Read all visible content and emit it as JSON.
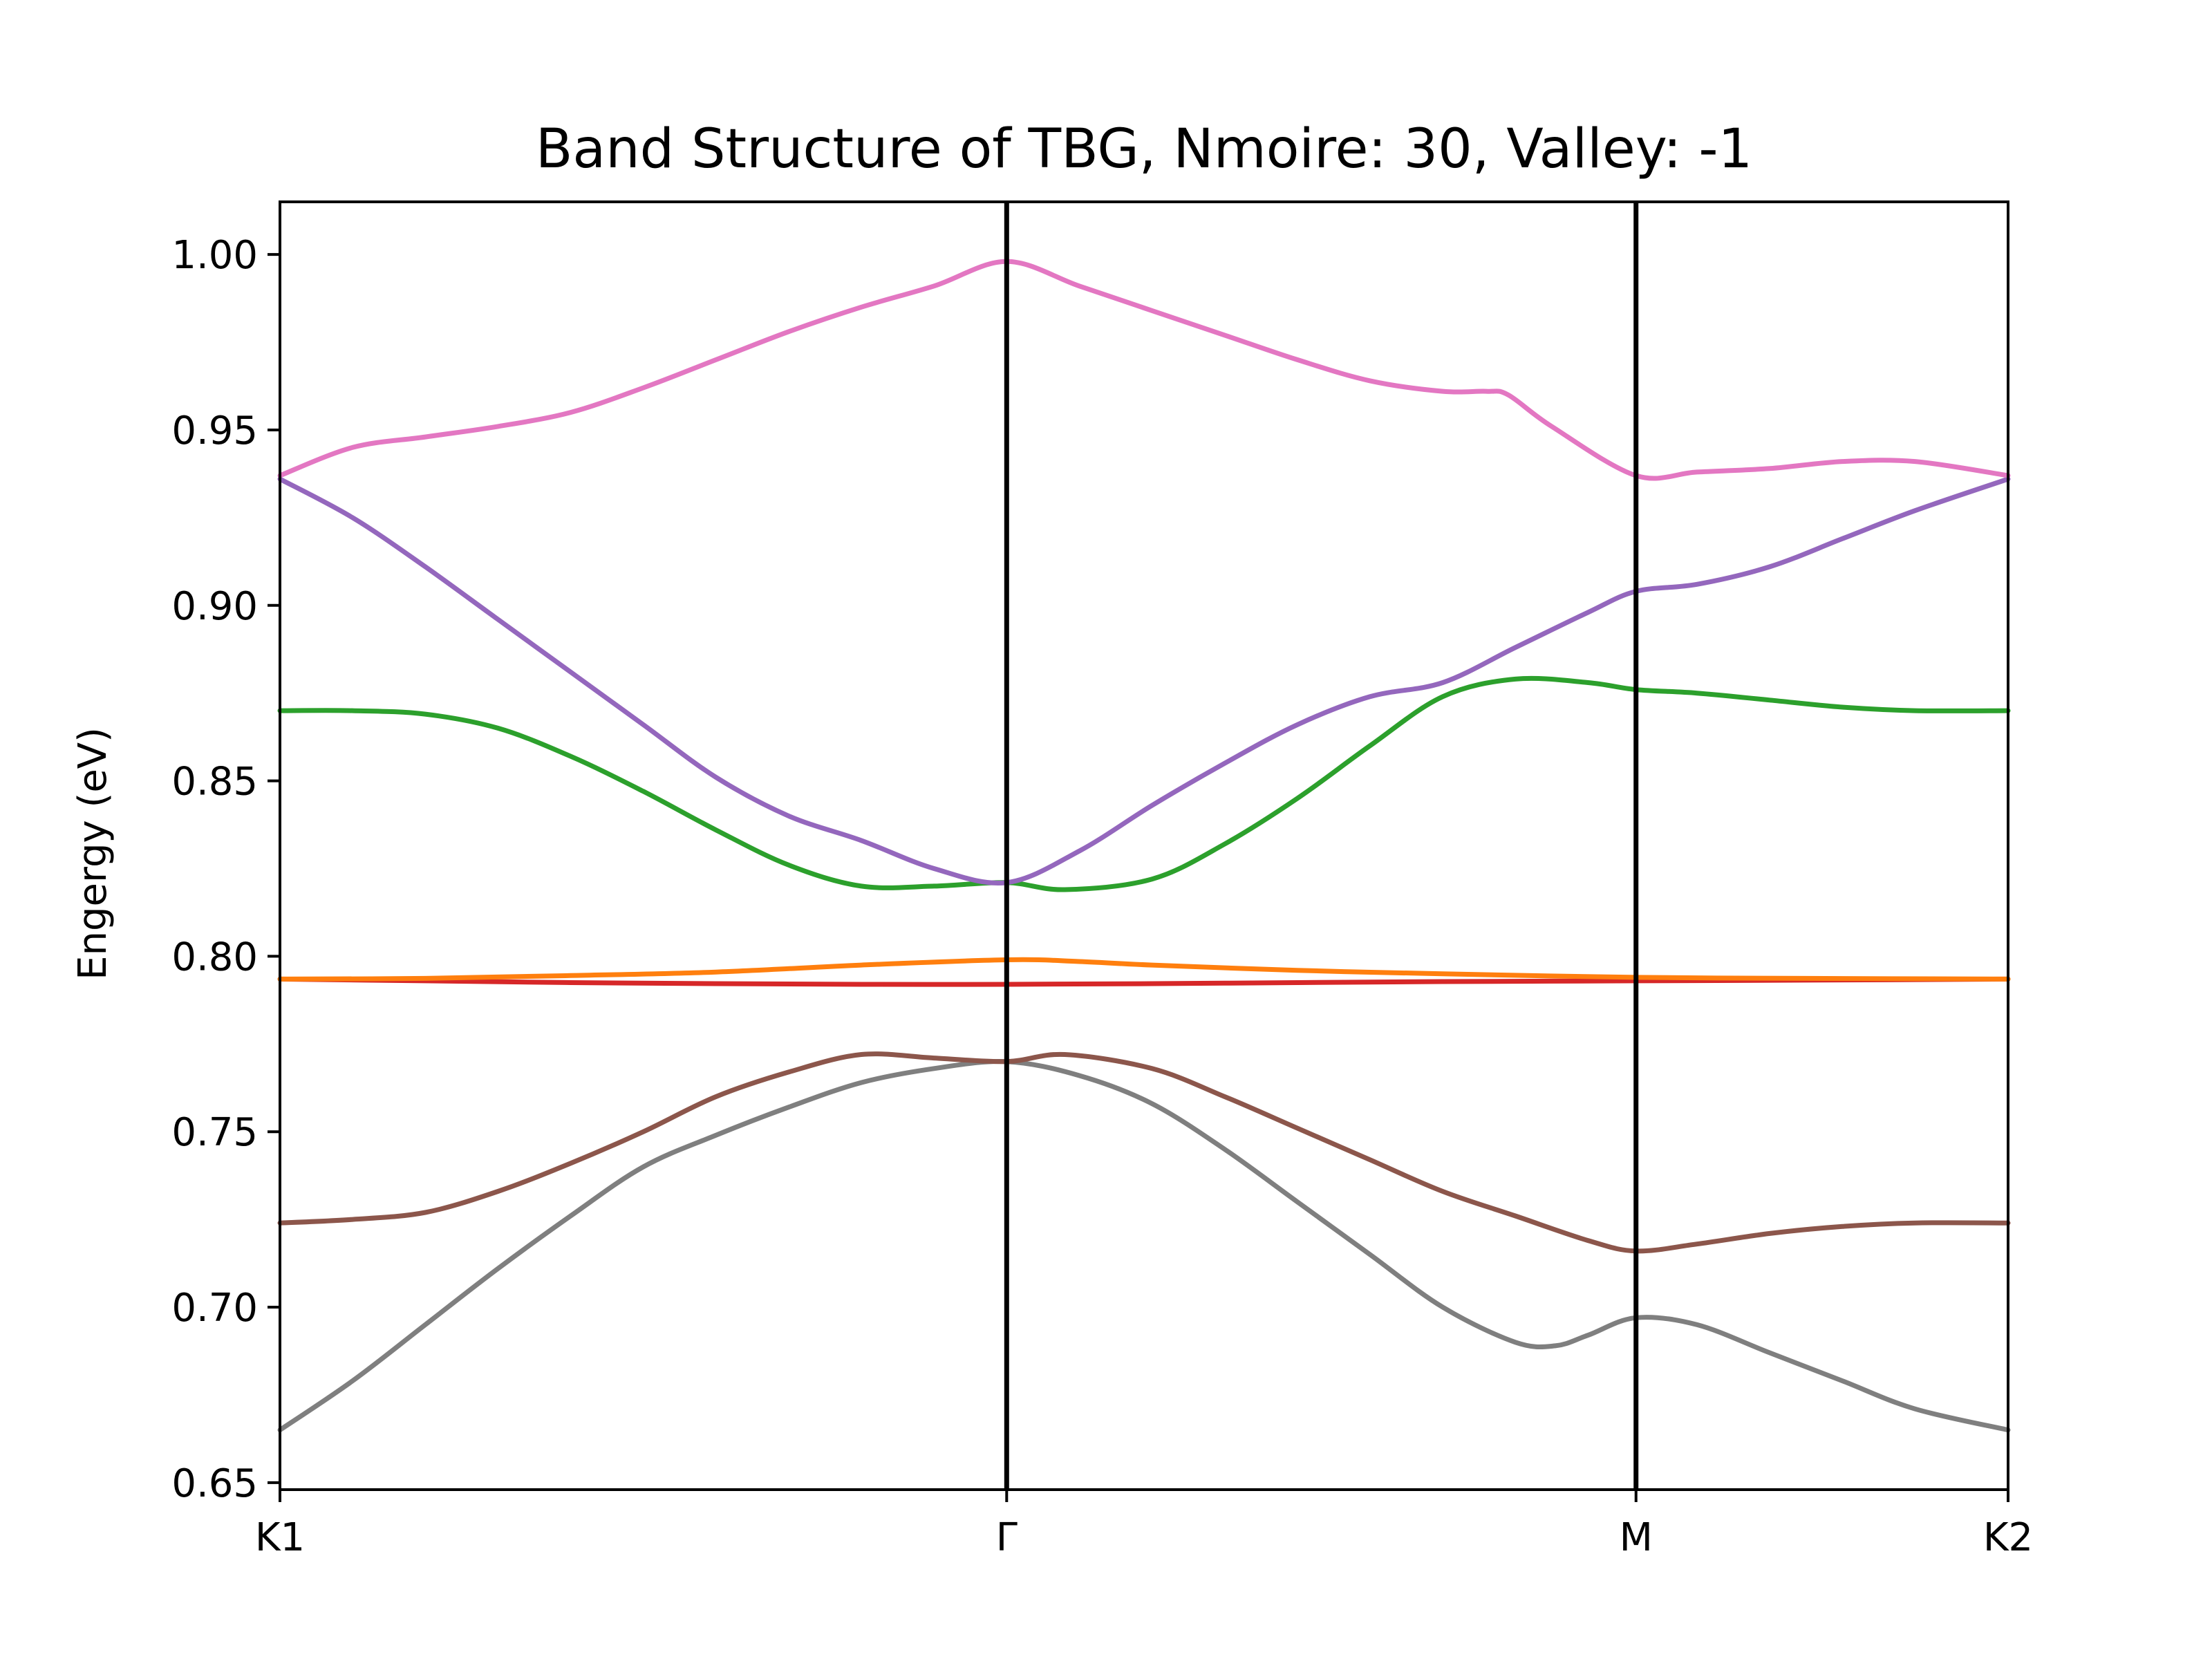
{
  "chart_data": {
    "type": "line",
    "title": "Band Structure of TBG, Nmoire: 30, Valley: -1",
    "xlabel": "",
    "ylabel": "Engergy (eV)",
    "xlim": [
      0,
      2.378
    ],
    "ylim": [
      0.648,
      1.015
    ],
    "yticks": [
      0.65,
      0.7,
      0.75,
      0.8,
      0.85,
      0.9,
      0.95,
      1.0
    ],
    "ytick_labels": [
      "0.65",
      "0.70",
      "0.75",
      "0.80",
      "0.85",
      "0.90",
      "0.95",
      "1.00"
    ],
    "xticks": [
      0,
      1.0,
      1.866,
      2.378
    ],
    "xtick_labels": [
      "K1",
      "Γ",
      "M",
      "K2"
    ],
    "vlines": [
      1.0,
      1.866
    ],
    "grid": false,
    "legend": "none",
    "series": [
      {
        "color": "#7f7f7f",
        "points": [
          [
            0,
            0.665
          ],
          [
            0.1,
            0.679
          ],
          [
            0.2,
            0.695
          ],
          [
            0.3,
            0.711
          ],
          [
            0.4,
            0.726
          ],
          [
            0.5,
            0.74
          ],
          [
            0.6,
            0.749
          ],
          [
            0.7,
            0.757
          ],
          [
            0.8,
            0.764
          ],
          [
            0.9,
            0.768
          ],
          [
            1.0,
            0.77
          ],
          [
            1.1,
            0.766
          ],
          [
            1.2,
            0.758
          ],
          [
            1.3,
            0.745
          ],
          [
            1.4,
            0.73
          ],
          [
            1.5,
            0.715
          ],
          [
            1.6,
            0.7
          ],
          [
            1.7,
            0.69
          ],
          [
            1.755,
            0.689
          ],
          [
            1.8,
            0.692
          ],
          [
            1.866,
            0.697
          ],
          [
            1.95,
            0.695
          ],
          [
            2.05,
            0.687
          ],
          [
            2.15,
            0.679
          ],
          [
            2.25,
            0.671
          ],
          [
            2.378,
            0.665
          ]
        ]
      },
      {
        "color": "#8c564b",
        "points": [
          [
            0,
            0.724
          ],
          [
            0.1,
            0.725
          ],
          [
            0.2,
            0.727
          ],
          [
            0.3,
            0.733
          ],
          [
            0.4,
            0.741
          ],
          [
            0.5,
            0.75
          ],
          [
            0.6,
            0.76
          ],
          [
            0.7,
            0.767
          ],
          [
            0.8,
            0.772
          ],
          [
            0.9,
            0.771
          ],
          [
            1.0,
            0.77
          ],
          [
            1.08,
            0.772
          ],
          [
            1.2,
            0.768
          ],
          [
            1.3,
            0.76
          ],
          [
            1.4,
            0.751
          ],
          [
            1.5,
            0.742
          ],
          [
            1.6,
            0.733
          ],
          [
            1.7,
            0.726
          ],
          [
            1.8,
            0.719
          ],
          [
            1.866,
            0.716
          ],
          [
            1.95,
            0.718
          ],
          [
            2.05,
            0.721
          ],
          [
            2.15,
            0.723
          ],
          [
            2.25,
            0.724
          ],
          [
            2.378,
            0.724
          ]
        ]
      },
      {
        "color": "#d62728",
        "points": [
          [
            0,
            0.7935
          ],
          [
            0.2,
            0.793
          ],
          [
            0.4,
            0.7925
          ],
          [
            0.6,
            0.7922
          ],
          [
            0.8,
            0.792
          ],
          [
            1.0,
            0.792
          ],
          [
            1.2,
            0.7922
          ],
          [
            1.4,
            0.7925
          ],
          [
            1.6,
            0.7928
          ],
          [
            1.866,
            0.793
          ],
          [
            2.1,
            0.7932
          ],
          [
            2.378,
            0.7935
          ]
        ]
      },
      {
        "color": "#ff7f0e",
        "points": [
          [
            0,
            0.7935
          ],
          [
            0.2,
            0.7937
          ],
          [
            0.4,
            0.7945
          ],
          [
            0.6,
            0.7955
          ],
          [
            0.8,
            0.7975
          ],
          [
            1.0,
            0.799
          ],
          [
            1.1,
            0.7985
          ],
          [
            1.2,
            0.7975
          ],
          [
            1.4,
            0.796
          ],
          [
            1.6,
            0.795
          ],
          [
            1.866,
            0.794
          ],
          [
            2.1,
            0.7937
          ],
          [
            2.378,
            0.7935
          ]
        ]
      },
      {
        "color": "#2ca02c",
        "points": [
          [
            0,
            0.87
          ],
          [
            0.1,
            0.87
          ],
          [
            0.2,
            0.869
          ],
          [
            0.3,
            0.865
          ],
          [
            0.4,
            0.857
          ],
          [
            0.5,
            0.847
          ],
          [
            0.6,
            0.836
          ],
          [
            0.7,
            0.826
          ],
          [
            0.8,
            0.82
          ],
          [
            0.9,
            0.82
          ],
          [
            1.0,
            0.821
          ],
          [
            1.08,
            0.819
          ],
          [
            1.2,
            0.822
          ],
          [
            1.3,
            0.832
          ],
          [
            1.4,
            0.845
          ],
          [
            1.5,
            0.86
          ],
          [
            1.6,
            0.874
          ],
          [
            1.7,
            0.879
          ],
          [
            1.8,
            0.878
          ],
          [
            1.866,
            0.876
          ],
          [
            1.95,
            0.875
          ],
          [
            2.05,
            0.873
          ],
          [
            2.15,
            0.871
          ],
          [
            2.25,
            0.87
          ],
          [
            2.378,
            0.87
          ]
        ]
      },
      {
        "color": "#9467bd",
        "points": [
          [
            0,
            0.936
          ],
          [
            0.1,
            0.925
          ],
          [
            0.2,
            0.911
          ],
          [
            0.3,
            0.896
          ],
          [
            0.4,
            0.881
          ],
          [
            0.5,
            0.866
          ],
          [
            0.6,
            0.851
          ],
          [
            0.7,
            0.84
          ],
          [
            0.8,
            0.833
          ],
          [
            0.9,
            0.825
          ],
          [
            1.0,
            0.821
          ],
          [
            1.1,
            0.83
          ],
          [
            1.2,
            0.843
          ],
          [
            1.3,
            0.855
          ],
          [
            1.4,
            0.866
          ],
          [
            1.5,
            0.874
          ],
          [
            1.6,
            0.878
          ],
          [
            1.7,
            0.888
          ],
          [
            1.8,
            0.898
          ],
          [
            1.866,
            0.904
          ],
          [
            1.95,
            0.906
          ],
          [
            2.05,
            0.911
          ],
          [
            2.15,
            0.919
          ],
          [
            2.25,
            0.927
          ],
          [
            2.378,
            0.936
          ]
        ]
      },
      {
        "color": "#e377c2",
        "points": [
          [
            0,
            0.937
          ],
          [
            0.1,
            0.945
          ],
          [
            0.2,
            0.948
          ],
          [
            0.3,
            0.951
          ],
          [
            0.4,
            0.955
          ],
          [
            0.5,
            0.962
          ],
          [
            0.6,
            0.97
          ],
          [
            0.7,
            0.978
          ],
          [
            0.8,
            0.985
          ],
          [
            0.9,
            0.991
          ],
          [
            1.0,
            0.998
          ],
          [
            1.1,
            0.991
          ],
          [
            1.2,
            0.984
          ],
          [
            1.3,
            0.977
          ],
          [
            1.4,
            0.97
          ],
          [
            1.5,
            0.964
          ],
          [
            1.6,
            0.961
          ],
          [
            1.66,
            0.961
          ],
          [
            1.69,
            0.96
          ],
          [
            1.75,
            0.951
          ],
          [
            1.866,
            0.937
          ],
          [
            1.95,
            0.938
          ],
          [
            2.05,
            0.939
          ],
          [
            2.15,
            0.941
          ],
          [
            2.25,
            0.941
          ],
          [
            2.378,
            0.937
          ]
        ]
      }
    ]
  }
}
